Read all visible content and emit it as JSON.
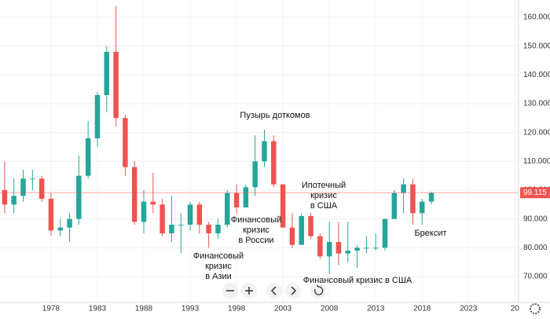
{
  "chart_data": {
    "type": "candlestick",
    "x": [
      1973,
      1974,
      1975,
      1976,
      1977,
      1978,
      1979,
      1980,
      1981,
      1982,
      1983,
      1984,
      1985,
      1986,
      1987,
      1988,
      1989,
      1990,
      1991,
      1992,
      1993,
      1994,
      1995,
      1996,
      1997,
      1998,
      1999,
      2000,
      2001,
      2002,
      2003,
      2004,
      2005,
      2006,
      2007,
      2008,
      2009,
      2010,
      2011,
      2012,
      2013,
      2014,
      2015,
      2016,
      2017,
      2018,
      2019
    ],
    "open": [
      100,
      95,
      98,
      104,
      104,
      97,
      86,
      87,
      90,
      105,
      118,
      133,
      148,
      125,
      108,
      89,
      96,
      95,
      85,
      88,
      88,
      95,
      88,
      85,
      88,
      99,
      94,
      101,
      110,
      117,
      102,
      87,
      81,
      91,
      84,
      77,
      82,
      78,
      79,
      80,
      80,
      80,
      90,
      99,
      102,
      92,
      96
    ],
    "high": [
      110,
      104,
      107,
      107,
      105,
      99,
      90,
      92,
      112,
      124,
      134,
      150,
      164,
      126,
      110,
      100,
      106,
      97,
      98,
      92,
      96,
      96,
      89,
      90,
      100,
      102,
      102,
      119,
      121,
      119,
      102,
      92,
      92,
      92,
      85,
      89,
      89,
      89,
      81,
      84,
      85,
      90,
      100,
      104,
      104,
      97,
      99.5
    ],
    "low": [
      92,
      92,
      96,
      100,
      96,
      84,
      84,
      82,
      88,
      104,
      115,
      127,
      122,
      105,
      88,
      85,
      92,
      84,
      82,
      78,
      86,
      85,
      80,
      83,
      87,
      92,
      94,
      98,
      108,
      101,
      87,
      80,
      81,
      83,
      76,
      71,
      74,
      75,
      73,
      78,
      79,
      79,
      90,
      92,
      88,
      88,
      95
    ],
    "close": [
      95,
      98,
      104,
      104,
      97,
      86,
      87,
      90,
      105,
      118,
      133,
      148,
      125,
      108,
      89,
      96,
      95,
      85,
      88,
      88,
      95,
      88,
      85,
      88,
      99,
      94,
      101,
      110,
      117,
      102,
      87,
      81,
      91,
      84,
      77,
      82,
      78,
      79,
      80,
      80,
      80,
      90,
      99,
      102,
      92,
      96,
      99
    ],
    "up_color": "#26a69a",
    "down_color": "#ef5350",
    "xlim": [
      1972.5,
      2028.4
    ],
    "xticks": [
      1978,
      1983,
      1988,
      1993,
      1998,
      2003,
      2008,
      2013,
      2018,
      2023,
      {
        "value": 2028,
        "label": "20"
      }
    ],
    "ylim": [
      61,
      166
    ],
    "yticks": [
      {
        "value": 70,
        "label": "70.000"
      },
      {
        "value": 80,
        "label": "80.000"
      },
      {
        "value": 90,
        "label": "90.000"
      },
      {
        "value": 100,
        "label": "100.000"
      },
      {
        "value": 110,
        "label": "110.000"
      },
      {
        "value": 120,
        "label": "120.000"
      },
      {
        "value": 130,
        "label": "130.000"
      },
      {
        "value": 140,
        "label": "140.000"
      },
      {
        "value": 150,
        "label": "150.000"
      },
      {
        "value": 160,
        "label": "160.000"
      }
    ],
    "grid": true,
    "last_price": {
      "value": 99.115,
      "label": "99.115",
      "color": "#ef5350"
    },
    "annotations": [
      {
        "lines": [
          "Пузырь доткомов"
        ]
      },
      {
        "lines": [
          "Ипотечный",
          "кризис",
          "в США"
        ]
      },
      {
        "lines": [
          "Финансовый",
          "кризис",
          "в России"
        ]
      },
      {
        "lines": [
          "Брексит"
        ]
      },
      {
        "lines": [
          "Финансовый",
          "кризис",
          "в Азии"
        ]
      },
      {
        "lines": [
          "Финансовый кризис в США"
        ]
      }
    ]
  }
}
